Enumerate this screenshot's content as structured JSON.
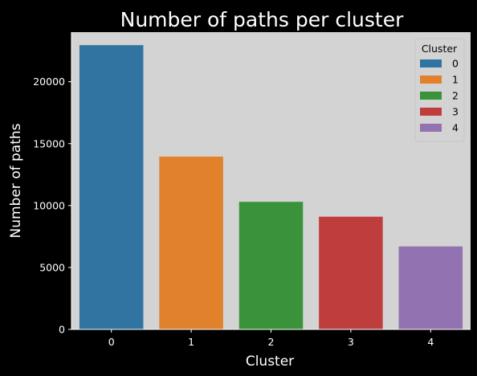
{
  "chart_data": {
    "type": "bar",
    "title": "Number of paths per cluster",
    "xlabel": "Cluster",
    "ylabel": "Number of paths",
    "categories": [
      "0",
      "1",
      "2",
      "3",
      "4"
    ],
    "values": [
      22950,
      13950,
      10300,
      9100,
      6700
    ],
    "colors": [
      "#3274a1",
      "#e1812c",
      "#3a923a",
      "#c03d3e",
      "#9372b2"
    ],
    "ylim": [
      0,
      24000
    ],
    "yticks": [
      0,
      5000,
      10000,
      15000,
      20000
    ],
    "ytick_labels": [
      "0",
      "5000",
      "10000",
      "15000",
      "20000"
    ],
    "grid": false,
    "plot_background": "#d3d3d3",
    "figure_background": "#000000",
    "legend": {
      "title": "Cluster",
      "position": "top-right",
      "entries": [
        "0",
        "1",
        "2",
        "3",
        "4"
      ]
    }
  }
}
